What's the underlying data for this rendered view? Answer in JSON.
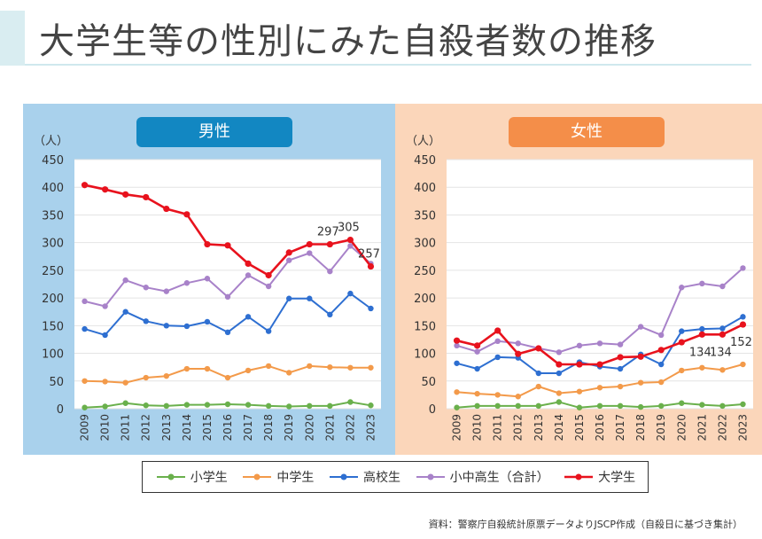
{
  "page": {
    "title": "大学生等の性別にみた自殺者数の推移",
    "source": "資料：警察庁自殺統計原票データよりJSCP作成（自殺日に基づき集計）"
  },
  "colors": {
    "小学生": "#6ab04c",
    "中学生": "#f39a4a",
    "高校生": "#2e6fd1",
    "小中高生（合計）": "#a882c9",
    "大学生": "#e8121d"
  },
  "chart_data": [
    {
      "type": "line",
      "title": "男性",
      "ylabel": "（人）",
      "ylim": [
        0,
        450
      ],
      "yticks": [
        0,
        50,
        100,
        150,
        200,
        250,
        300,
        350,
        400,
        450
      ],
      "categories": [
        "2009",
        "2010",
        "2011",
        "2012",
        "2013",
        "2014",
        "2015",
        "2016",
        "2017",
        "2018",
        "2019",
        "2020",
        "2021",
        "2022",
        "2023"
      ],
      "series": [
        {
          "name": "小学生",
          "values": [
            2,
            4,
            10,
            6,
            5,
            7,
            7,
            8,
            7,
            5,
            4,
            5,
            5,
            12,
            6
          ]
        },
        {
          "name": "中学生",
          "values": [
            50,
            49,
            47,
            56,
            59,
            72,
            72,
            56,
            69,
            77,
            65,
            77,
            75,
            74,
            74
          ]
        },
        {
          "name": "高校生",
          "values": [
            144,
            133,
            175,
            158,
            150,
            149,
            157,
            138,
            166,
            140,
            199,
            199,
            170,
            208,
            181
          ]
        },
        {
          "name": "小中高生（合計）",
          "values": [
            194,
            185,
            232,
            219,
            212,
            227,
            235,
            202,
            241,
            221,
            268,
            281,
            248,
            294,
            262
          ]
        },
        {
          "name": "大学生",
          "values": [
            404,
            396,
            387,
            382,
            361,
            351,
            297,
            295,
            262,
            241,
            282,
            297,
            297,
            305,
            257
          ]
        }
      ],
      "annotations": [
        {
          "year": "2021",
          "text": "297"
        },
        {
          "year": "2022",
          "text": "305"
        },
        {
          "year": "2023",
          "text": "257"
        }
      ]
    },
    {
      "type": "line",
      "title": "女性",
      "ylabel": "（人）",
      "ylim": [
        0,
        450
      ],
      "yticks": [
        0,
        50,
        100,
        150,
        200,
        250,
        300,
        350,
        400,
        450
      ],
      "categories": [
        "2009",
        "2010",
        "2011",
        "2012",
        "2013",
        "2014",
        "2015",
        "2016",
        "2017",
        "2018",
        "2019",
        "2020",
        "2021",
        "2022",
        "2023"
      ],
      "series": [
        {
          "name": "小学生",
          "values": [
            2,
            5,
            5,
            5,
            5,
            12,
            2,
            5,
            5,
            3,
            5,
            10,
            7,
            5,
            8
          ]
        },
        {
          "name": "中学生",
          "values": [
            30,
            27,
            25,
            22,
            40,
            28,
            31,
            38,
            40,
            47,
            48,
            69,
            74,
            70,
            80
          ]
        },
        {
          "name": "高校生",
          "values": [
            82,
            72,
            93,
            92,
            64,
            64,
            84,
            76,
            72,
            98,
            80,
            140,
            144,
            145,
            166
          ]
        },
        {
          "name": "小中高生（合計）",
          "values": [
            114,
            103,
            122,
            118,
            109,
            102,
            114,
            118,
            116,
            148,
            133,
            219,
            226,
            221,
            254
          ]
        },
        {
          "name": "大学生",
          "values": [
            123,
            114,
            141,
            99,
            109,
            80,
            80,
            80,
            93,
            94,
            106,
            120,
            134,
            134,
            152
          ]
        }
      ],
      "annotations": [
        {
          "year": "2021",
          "text": "134"
        },
        {
          "year": "2022",
          "text": "134"
        },
        {
          "year": "2023",
          "text": "152"
        }
      ]
    }
  ]
}
